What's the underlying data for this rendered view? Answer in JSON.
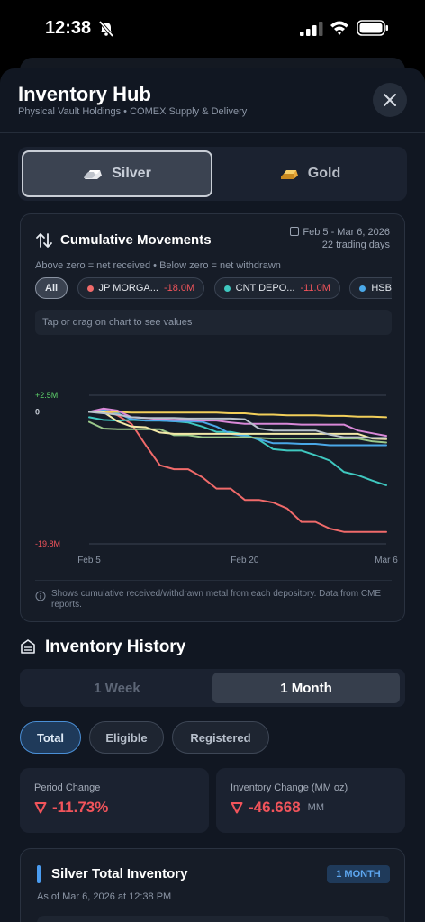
{
  "status_bar": {
    "time": "12:38"
  },
  "header": {
    "title": "Inventory Hub",
    "subtitle": "Physical Vault Holdings • COMEX Supply & Delivery"
  },
  "metal_toggle": {
    "silver_label": "Silver",
    "gold_label": "Gold",
    "selected": "Silver"
  },
  "movements": {
    "title": "Cumulative Movements",
    "date_range": "Feb 5 - Mar 6, 2026",
    "trading_days": "22 trading days",
    "note": "Above zero = net received • Below zero = net withdrawn",
    "chips": [
      {
        "label": "All",
        "value": ""
      },
      {
        "label": "JP MORGA...",
        "value": "-18.0M",
        "color": "#f06a6a"
      },
      {
        "label": "CNT DEPO...",
        "value": "-11.0M",
        "color": "#3fc8c0"
      },
      {
        "label": "HSBC B",
        "value": "",
        "color": "#4aa8e8"
      }
    ],
    "tap_hint": "Tap or drag on chart to see values",
    "footer": "Shows cumulative received/withdrawn metal from each depository. Data from CME reports."
  },
  "chart_data": {
    "type": "line",
    "x_tick_labels": [
      "Feb 5",
      "Feb 20",
      "Mar 6"
    ],
    "y_tick_labels": [
      "+2.5M",
      "0",
      "-19.8M"
    ],
    "ylim": [
      -19.8,
      2.5
    ],
    "x": [
      1,
      2,
      3,
      4,
      5,
      6,
      7,
      8,
      9,
      10,
      11,
      12,
      13,
      14,
      15,
      16,
      17,
      18,
      19,
      20,
      21,
      22
    ],
    "series": [
      {
        "name": "JP MORGA...",
        "color": "#f06a6a",
        "values": [
          0,
          0.3,
          -0.5,
          -1.8,
          -5,
          -8,
          -8.6,
          -8.6,
          -9.8,
          -11.5,
          -11.5,
          -13.2,
          -13.2,
          -13.6,
          -14.5,
          -16.5,
          -16.5,
          -17.5,
          -18,
          -18,
          -18,
          -18
        ]
      },
      {
        "name": "CNT DEPO...",
        "color": "#3fc8c0",
        "values": [
          -0.8,
          -1.2,
          -1.3,
          -1.2,
          -1.3,
          -1.3,
          -1.4,
          -1.6,
          -2.2,
          -3,
          -3,
          -3.4,
          -4.2,
          -5.6,
          -5.8,
          -5.8,
          -6.5,
          -7.3,
          -9,
          -9.5,
          -10.3,
          -11
        ]
      },
      {
        "name": "HSBC B",
        "color": "#4aa8e8",
        "values": [
          0,
          0.3,
          -0.2,
          -1.1,
          -1.3,
          -1.3,
          -1.4,
          -1.4,
          -1.5,
          -2.2,
          -3.3,
          -3.6,
          -4.1,
          -4.7,
          -4.7,
          -4.8,
          -4.8,
          -5,
          -5,
          -5,
          -5,
          -5
        ]
      },
      {
        "name": "",
        "color": "#f2cf5a",
        "values": [
          0,
          0,
          0,
          -0.1,
          -0.1,
          -0.1,
          -0.1,
          -0.1,
          -0.1,
          -0.1,
          -0.2,
          -0.2,
          -0.4,
          -0.4,
          -0.5,
          -0.5,
          -0.5,
          -0.6,
          -0.6,
          -0.7,
          -0.7,
          -0.8
        ]
      },
      {
        "name": "",
        "color": "#d988d8",
        "values": [
          0,
          0.5,
          0.2,
          -0.8,
          -0.9,
          -1.1,
          -1.2,
          -1.2,
          -1.3,
          -1.3,
          -1.6,
          -1.8,
          -1.8,
          -1.8,
          -1.8,
          -1.9,
          -1.9,
          -1.9,
          -1.9,
          -2.8,
          -3.2,
          -3.6
        ]
      },
      {
        "name": "",
        "color": "#9bc88a",
        "values": [
          -1.5,
          -2.5,
          -2.6,
          -2.6,
          -2.6,
          -2.6,
          -3.5,
          -3.5,
          -3.8,
          -3.8,
          -3.8,
          -3.8,
          -3.9,
          -4,
          -4,
          -4,
          -4,
          -4,
          -4,
          -4,
          -4.4,
          -4.6
        ]
      },
      {
        "name": "",
        "color": "#f3e9a8",
        "values": [
          0,
          0,
          -1.4,
          -2.2,
          -2.3,
          -3.1,
          -3.3,
          -3.3,
          -3.3,
          -3.3,
          -3.3,
          -3.3,
          -3.3,
          -3.3,
          -3.3,
          -3.3,
          -3.3,
          -3.3,
          -3.3,
          -3.3,
          -4,
          -4.1
        ]
      },
      {
        "name": "",
        "color": "#b9c2cc",
        "values": [
          0,
          -0.2,
          -0.4,
          -0.8,
          -0.9,
          -0.9,
          -0.9,
          -1,
          -1,
          -1,
          -1,
          -1.1,
          -2.5,
          -2.8,
          -2.8,
          -2.8,
          -2.8,
          -3.4,
          -3.8,
          -3.8,
          -3.9,
          -3.9
        ]
      }
    ]
  },
  "history": {
    "title": "Inventory History",
    "range_week": "1 Week",
    "range_month": "1 Month",
    "filters": [
      "Total",
      "Eligible",
      "Registered"
    ],
    "period_change_label": "Period Change",
    "period_change_value": "-11.73%",
    "inventory_change_label": "Inventory Change (MM oz)",
    "inventory_change_value": "-46.668",
    "inventory_change_unit": "MM"
  },
  "total_inventory": {
    "title": "Silver Total Inventory",
    "badge": "1 MONTH",
    "as_of": "As of Mar 6, 2026 at 12:38 PM"
  }
}
